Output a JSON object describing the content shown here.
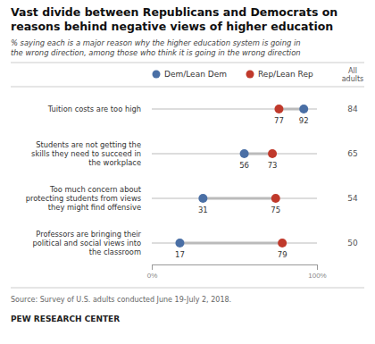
{
  "chart_data": {
    "type": "dumbbell",
    "title": "Vast divide between Republicans and Democrats on\nreasons behind negative views of higher education",
    "subtitle": "% saying each is a major reason why the higher education system is going in\nthe wrong direction, among those who think it is going in the wrong direction",
    "categories": [
      "Tuition costs are too high",
      "Students are not getting the\nskills they need to succeed in\nthe workplace",
      "Too much concern about\nprotecting students from views\nthey might find offensive",
      "Professors are bringing their\npolitical and social views into\nthe classroom"
    ],
    "series": [
      {
        "name": "Dem/Lean Dem",
        "type": "dot",
        "color": "#4a6fa5",
        "values": [
          92,
          56,
          31,
          17
        ]
      },
      {
        "name": "Rep/Lean Rep",
        "type": "dot",
        "color": "#c0392b",
        "values": [
          77,
          73,
          75,
          79
        ]
      },
      {
        "name": "All\nadults",
        "type": "text",
        "values": [
          84,
          65,
          54,
          50
        ]
      }
    ],
    "xlim": [
      0,
      100
    ],
    "xticks": [
      {
        "value": 0,
        "label": "0%"
      },
      {
        "value": 100,
        "label": "100%"
      }
    ],
    "data_labels": true,
    "legend": "top",
    "grid": false,
    "source": "Source: Survey of U.S. adults conducted June 19-July 2, 2018.",
    "footer": "PEW RESEARCH CENTER"
  }
}
